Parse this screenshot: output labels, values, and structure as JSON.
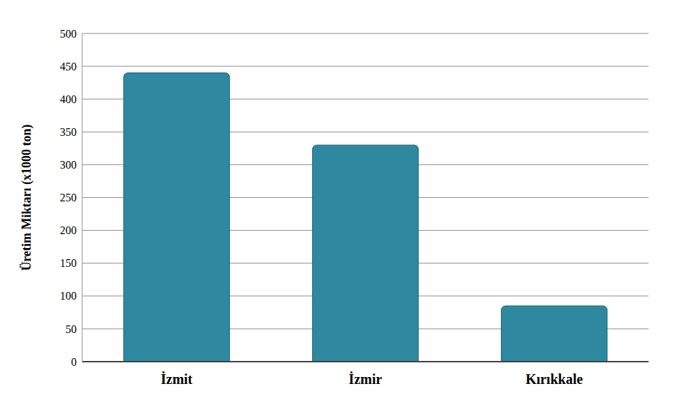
{
  "chart_data": {
    "type": "bar",
    "y_label": "Üretim Miktarı (x1000 ton)",
    "categories": [
      "İzmit",
      "İzmir",
      "Kırıkkale"
    ],
    "values": [
      440,
      330,
      85
    ],
    "color": "#2e88a0",
    "ylim": [
      0,
      500
    ],
    "yticks": [
      0,
      50,
      100,
      150,
      200,
      250,
      300,
      350,
      400,
      450,
      500
    ],
    "grid": true
  }
}
